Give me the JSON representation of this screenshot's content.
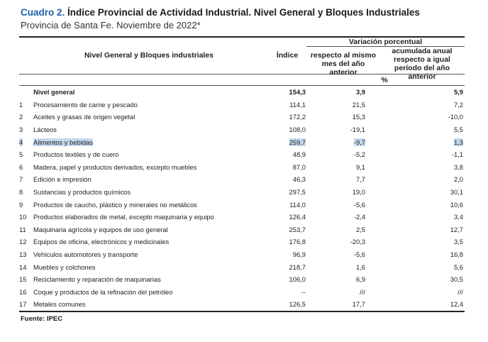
{
  "title": {
    "number": "Cuadro 2.",
    "text": "Índice Provincial de Actividad Industrial. Nivel General y Bloques Industriales"
  },
  "subtitle": "Provincia de Santa Fe. Noviembre de 2022*",
  "header": {
    "group": "Variación porcentual",
    "col_label": "Nivel General y Bloques industriales",
    "col_index": "Índice",
    "col_var1": "respecto al mismo mes del año anterior",
    "col_var2": "acumulada anual respecto a igual período del año anterior",
    "unit": "%"
  },
  "rows": [
    {
      "n": "",
      "label": "Nivel general",
      "index": "154,3",
      "var1": "3,9",
      "var2": "5,9"
    },
    {
      "n": "1",
      "label": "Procesamiento de carne y pescado",
      "index": "114,1",
      "var1": "21,5",
      "var2": "7,2"
    },
    {
      "n": "2",
      "label": "Aceites y grasas de origen vegetal",
      "index": "172,2",
      "var1": "15,3",
      "var2": "-10,0"
    },
    {
      "n": "3",
      "label": "Lácteos",
      "index": "108,0",
      "var1": "-19,1",
      "var2": "5,5"
    },
    {
      "n": "4",
      "label": "Alimentos y bebidas",
      "index": "259,7",
      "var1": "-9,7",
      "var2": "1,3"
    },
    {
      "n": "5",
      "label": "Productos textiles y de cuero",
      "index": "48,9",
      "var1": "-5,2",
      "var2": "-1,1"
    },
    {
      "n": "6",
      "label": "Madera, papel y productos derivados, excepto muebles",
      "index": "87,0",
      "var1": "9,1",
      "var2": "3,8"
    },
    {
      "n": "7",
      "label": "Edición e impresión",
      "index": "46,3",
      "var1": "7,7",
      "var2": "2,0"
    },
    {
      "n": "8",
      "label": "Sustancias y productos químicos",
      "index": "297,5",
      "var1": "19,0",
      "var2": "30,1"
    },
    {
      "n": "9",
      "label": "Productos de caucho, plástico y minerales no metálicos",
      "index": "114,0",
      "var1": "-5,6",
      "var2": "10,6"
    },
    {
      "n": "10",
      "label": "Productos elaborados de metal, excepto maquinaria y equipo",
      "index": "126,4",
      "var1": "-2,4",
      "var2": "3,4"
    },
    {
      "n": "11",
      "label": "Maquinaria agrícola y equipos de uso general",
      "index": "253,7",
      "var1": "2,5",
      "var2": "12,7"
    },
    {
      "n": "12",
      "label": "Equipos de oficina, electrónicos y medicinales",
      "index": "176,8",
      "var1": "-20,3",
      "var2": "3,5"
    },
    {
      "n": "13",
      "label": "Vehículos automotores y transporte",
      "index": "96,9",
      "var1": "-5,6",
      "var2": "16,8"
    },
    {
      "n": "14",
      "label": "Muebles y colchones",
      "index": "218,7",
      "var1": "1,6",
      "var2": "5,6"
    },
    {
      "n": "15",
      "label": "Reciclamiento y reparación de maquinarias",
      "index": "106,0",
      "var1": "6,9",
      "var2": "30,5"
    },
    {
      "n": "16",
      "label": "Coque y productos de la refinación del petróleo",
      "index": "--",
      "var1": "///",
      "var2": "///"
    },
    {
      "n": "17",
      "label": "Metales comunes",
      "index": "126,5",
      "var1": "17,7",
      "var2": "12,4"
    }
  ],
  "source": "Fuente: IPEC"
}
